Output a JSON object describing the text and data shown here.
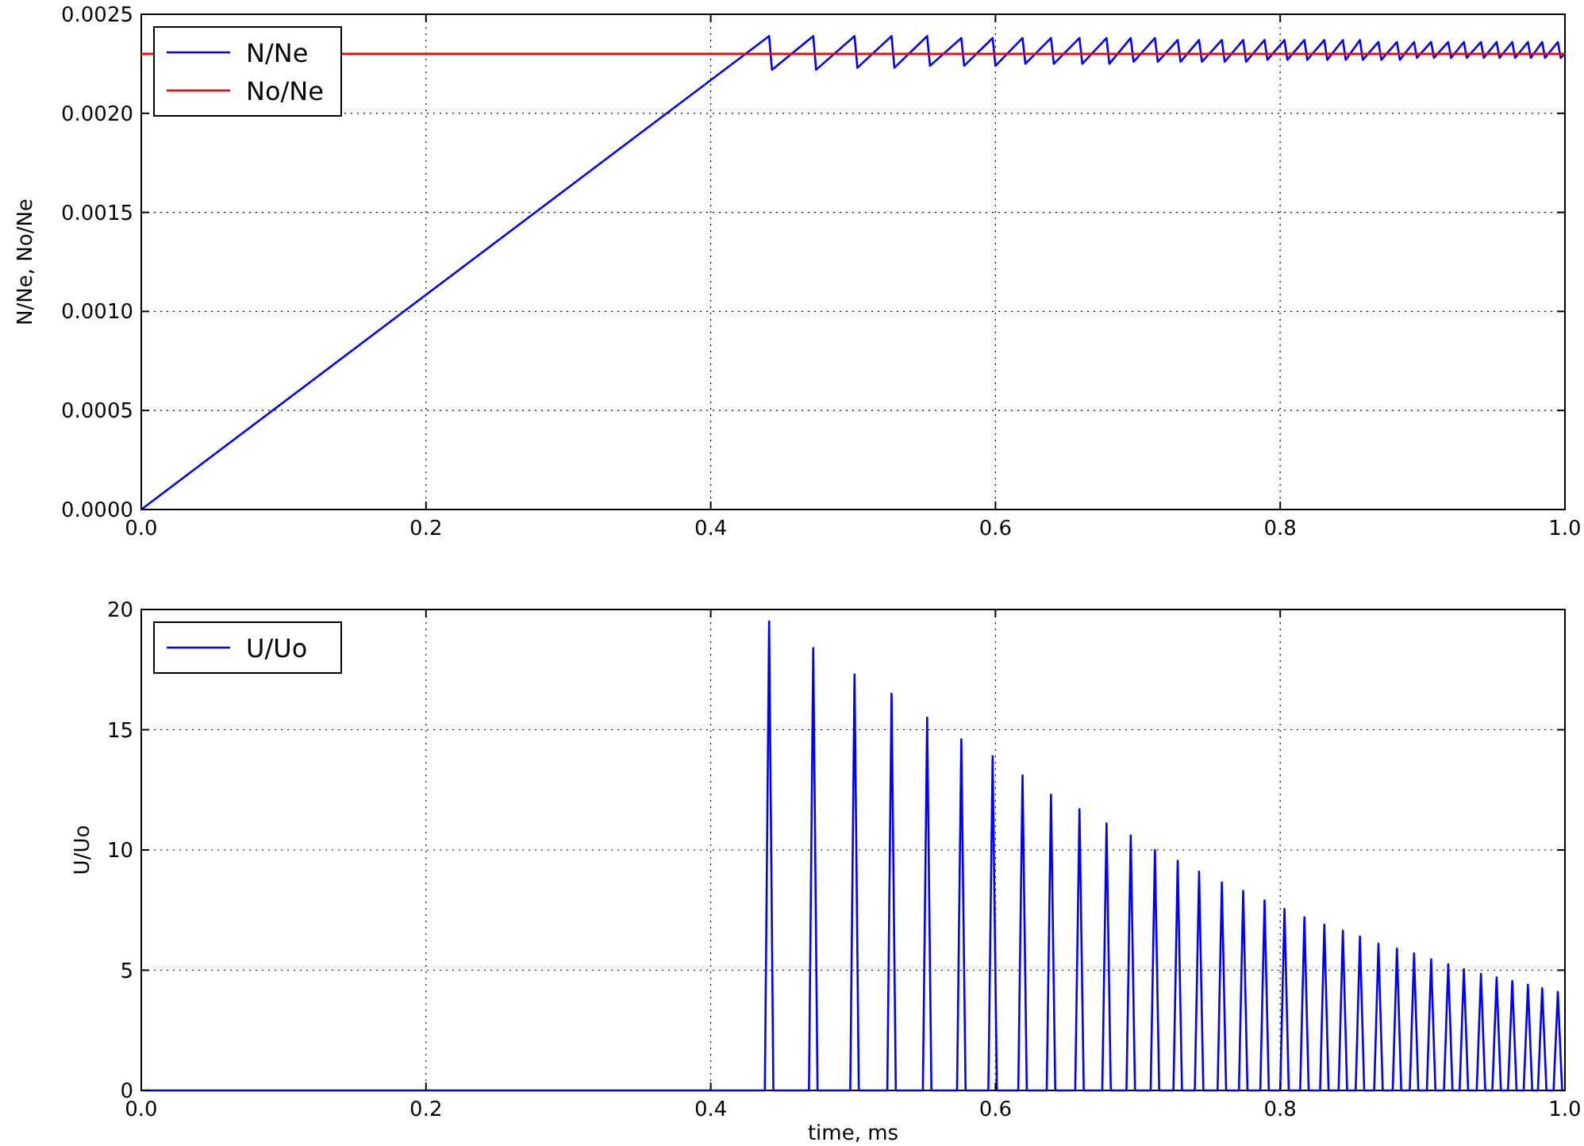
{
  "chart_data": [
    {
      "type": "line",
      "ylabel": "N/Ne, No/Ne",
      "xlim": [
        0,
        1
      ],
      "xticks": [
        {
          "value": 0,
          "label": "0.0"
        },
        {
          "value": 0.2,
          "label": "0.2"
        },
        {
          "value": 0.4,
          "label": "0.4"
        },
        {
          "value": 0.6,
          "label": "0.6"
        },
        {
          "value": 0.8,
          "label": "0.8"
        },
        {
          "value": 1,
          "label": "1.0"
        }
      ],
      "ylim": [
        0,
        0.0025
      ],
      "yticks": [
        {
          "value": 0,
          "label": "0.0000"
        },
        {
          "value": 0.0005,
          "label": "0.0005"
        },
        {
          "value": 0.001,
          "label": "0.0010"
        },
        {
          "value": 0.0015,
          "label": "0.0015"
        },
        {
          "value": 0.002,
          "label": "0.0020"
        },
        {
          "value": 0.0025,
          "label": "0.0025"
        }
      ],
      "grid": true,
      "legend": "top left",
      "line_style": "solid",
      "series": [
        {
          "name": "N/Ne",
          "color": "#0000ff",
          "x": [
            0,
            0.441,
            0.443,
            0.472,
            0.474,
            0.501,
            0.503,
            0.527,
            0.529,
            0.552,
            0.554,
            0.576,
            0.578,
            0.598,
            0.6,
            0.619,
            0.621,
            0.639,
            0.641,
            0.659,
            0.661,
            0.678,
            0.68,
            0.695,
            0.697,
            0.712,
            0.714,
            0.728,
            0.73,
            0.743,
            0.745,
            0.759,
            0.761,
            0.774,
            0.776,
            0.789,
            0.791,
            0.803,
            0.805,
            0.817,
            0.819,
            0.831,
            0.833,
            0.844,
            0.846,
            0.856,
            0.858,
            0.869,
            0.871,
            0.882,
            0.884,
            0.894,
            0.896,
            0.906,
            0.908,
            0.918,
            0.92,
            0.929,
            0.931,
            0.941,
            0.943,
            0.952,
            0.954,
            0.963,
            0.965,
            0.974,
            0.976,
            0.984,
            0.986,
            0.995,
            0.997,
            1
          ],
          "values": [
            0,
            0.00239,
            0.00222,
            0.00239,
            0.00222,
            0.00239,
            0.00223,
            0.00239,
            0.00223,
            0.00239,
            0.00224,
            0.00238,
            0.00224,
            0.00238,
            0.00224,
            0.00238,
            0.00225,
            0.00238,
            0.00225,
            0.00238,
            0.00225,
            0.00238,
            0.00225,
            0.00238,
            0.00226,
            0.00238,
            0.00226,
            0.00237,
            0.00226,
            0.00237,
            0.00226,
            0.00237,
            0.00226,
            0.00237,
            0.00226,
            0.00237,
            0.00227,
            0.00237,
            0.00227,
            0.00237,
            0.00227,
            0.00237,
            0.00227,
            0.00237,
            0.00227,
            0.00237,
            0.00227,
            0.00236,
            0.00227,
            0.00236,
            0.00227,
            0.00236,
            0.00228,
            0.00236,
            0.00228,
            0.00236,
            0.00228,
            0.00236,
            0.00228,
            0.00236,
            0.00228,
            0.00236,
            0.00228,
            0.00236,
            0.00228,
            0.00236,
            0.00228,
            0.00236,
            0.00228,
            0.00236,
            0.00228,
            0.0023
          ]
        },
        {
          "name": "No/Ne",
          "color": "#ff0000",
          "x": [
            0,
            1
          ],
          "values": [
            0.0023,
            0.0023
          ]
        }
      ]
    },
    {
      "type": "line",
      "xlabel": "time, ms",
      "ylabel": "U/Uo",
      "xlim": [
        0,
        1
      ],
      "xticks": [
        {
          "value": 0,
          "label": "0.0"
        },
        {
          "value": 0.2,
          "label": "0.2"
        },
        {
          "value": 0.4,
          "label": "0.4"
        },
        {
          "value": 0.6,
          "label": "0.6"
        },
        {
          "value": 0.8,
          "label": "0.8"
        },
        {
          "value": 1,
          "label": "1.0"
        }
      ],
      "ylim": [
        0,
        20
      ],
      "yticks": [
        0,
        5,
        10,
        15,
        20
      ],
      "grid": true,
      "legend": "top left",
      "line_style": "solid",
      "series": [
        {
          "name": "U/Uo",
          "color": "#0000ff",
          "x": [
            0,
            0.438,
            0.441,
            0.444,
            0.469,
            0.472,
            0.475,
            0.498,
            0.501,
            0.504,
            0.524,
            0.527,
            0.53,
            0.549,
            0.552,
            0.555,
            0.573,
            0.576,
            0.579,
            0.595,
            0.598,
            0.601,
            0.616,
            0.619,
            0.622,
            0.636,
            0.639,
            0.642,
            0.656,
            0.659,
            0.662,
            0.675,
            0.678,
            0.681,
            0.692,
            0.695,
            0.698,
            0.709,
            0.712,
            0.715,
            0.725,
            0.728,
            0.731,
            0.74,
            0.743,
            0.746,
            0.756,
            0.759,
            0.762,
            0.771,
            0.774,
            0.777,
            0.786,
            0.789,
            0.792,
            0.8,
            0.803,
            0.806,
            0.814,
            0.817,
            0.82,
            0.828,
            0.831,
            0.834,
            0.841,
            0.844,
            0.847,
            0.853,
            0.856,
            0.859,
            0.866,
            0.869,
            0.872,
            0.879,
            0.882,
            0.885,
            0.891,
            0.894,
            0.897,
            0.903,
            0.906,
            0.909,
            0.915,
            0.918,
            0.921,
            0.926,
            0.929,
            0.932,
            0.938,
            0.941,
            0.944,
            0.949,
            0.952,
            0.955,
            0.96,
            0.963,
            0.966,
            0.971,
            0.974,
            0.977,
            0.981,
            0.984,
            0.987,
            0.992,
            0.995,
            0.998,
            1
          ],
          "values": [
            0,
            0,
            19.5,
            0,
            0,
            18.4,
            0,
            0,
            17.3,
            0,
            0,
            16.5,
            0,
            0,
            15.5,
            0,
            0,
            14.6,
            0,
            0,
            13.9,
            0,
            0,
            13.1,
            0,
            0,
            12.3,
            0,
            0,
            11.7,
            0,
            0,
            11.1,
            0,
            0,
            10.6,
            0,
            0,
            10.0,
            0,
            0,
            9.55,
            0,
            0,
            9.1,
            0,
            0,
            8.65,
            0,
            0,
            8.3,
            0,
            0,
            7.9,
            0,
            0,
            7.55,
            0,
            0,
            7.2,
            0,
            0,
            6.9,
            0,
            0,
            6.65,
            0,
            0,
            6.4,
            0,
            0,
            6.1,
            0,
            0,
            5.9,
            0,
            0,
            5.7,
            0,
            0,
            5.45,
            0,
            0,
            5.25,
            0,
            0,
            5.05,
            0,
            0,
            4.85,
            0,
            0,
            4.7,
            0,
            0,
            4.55,
            0,
            0,
            4.4,
            0,
            0,
            4.25,
            0,
            0,
            4.1,
            0,
            0
          ]
        }
      ]
    }
  ]
}
